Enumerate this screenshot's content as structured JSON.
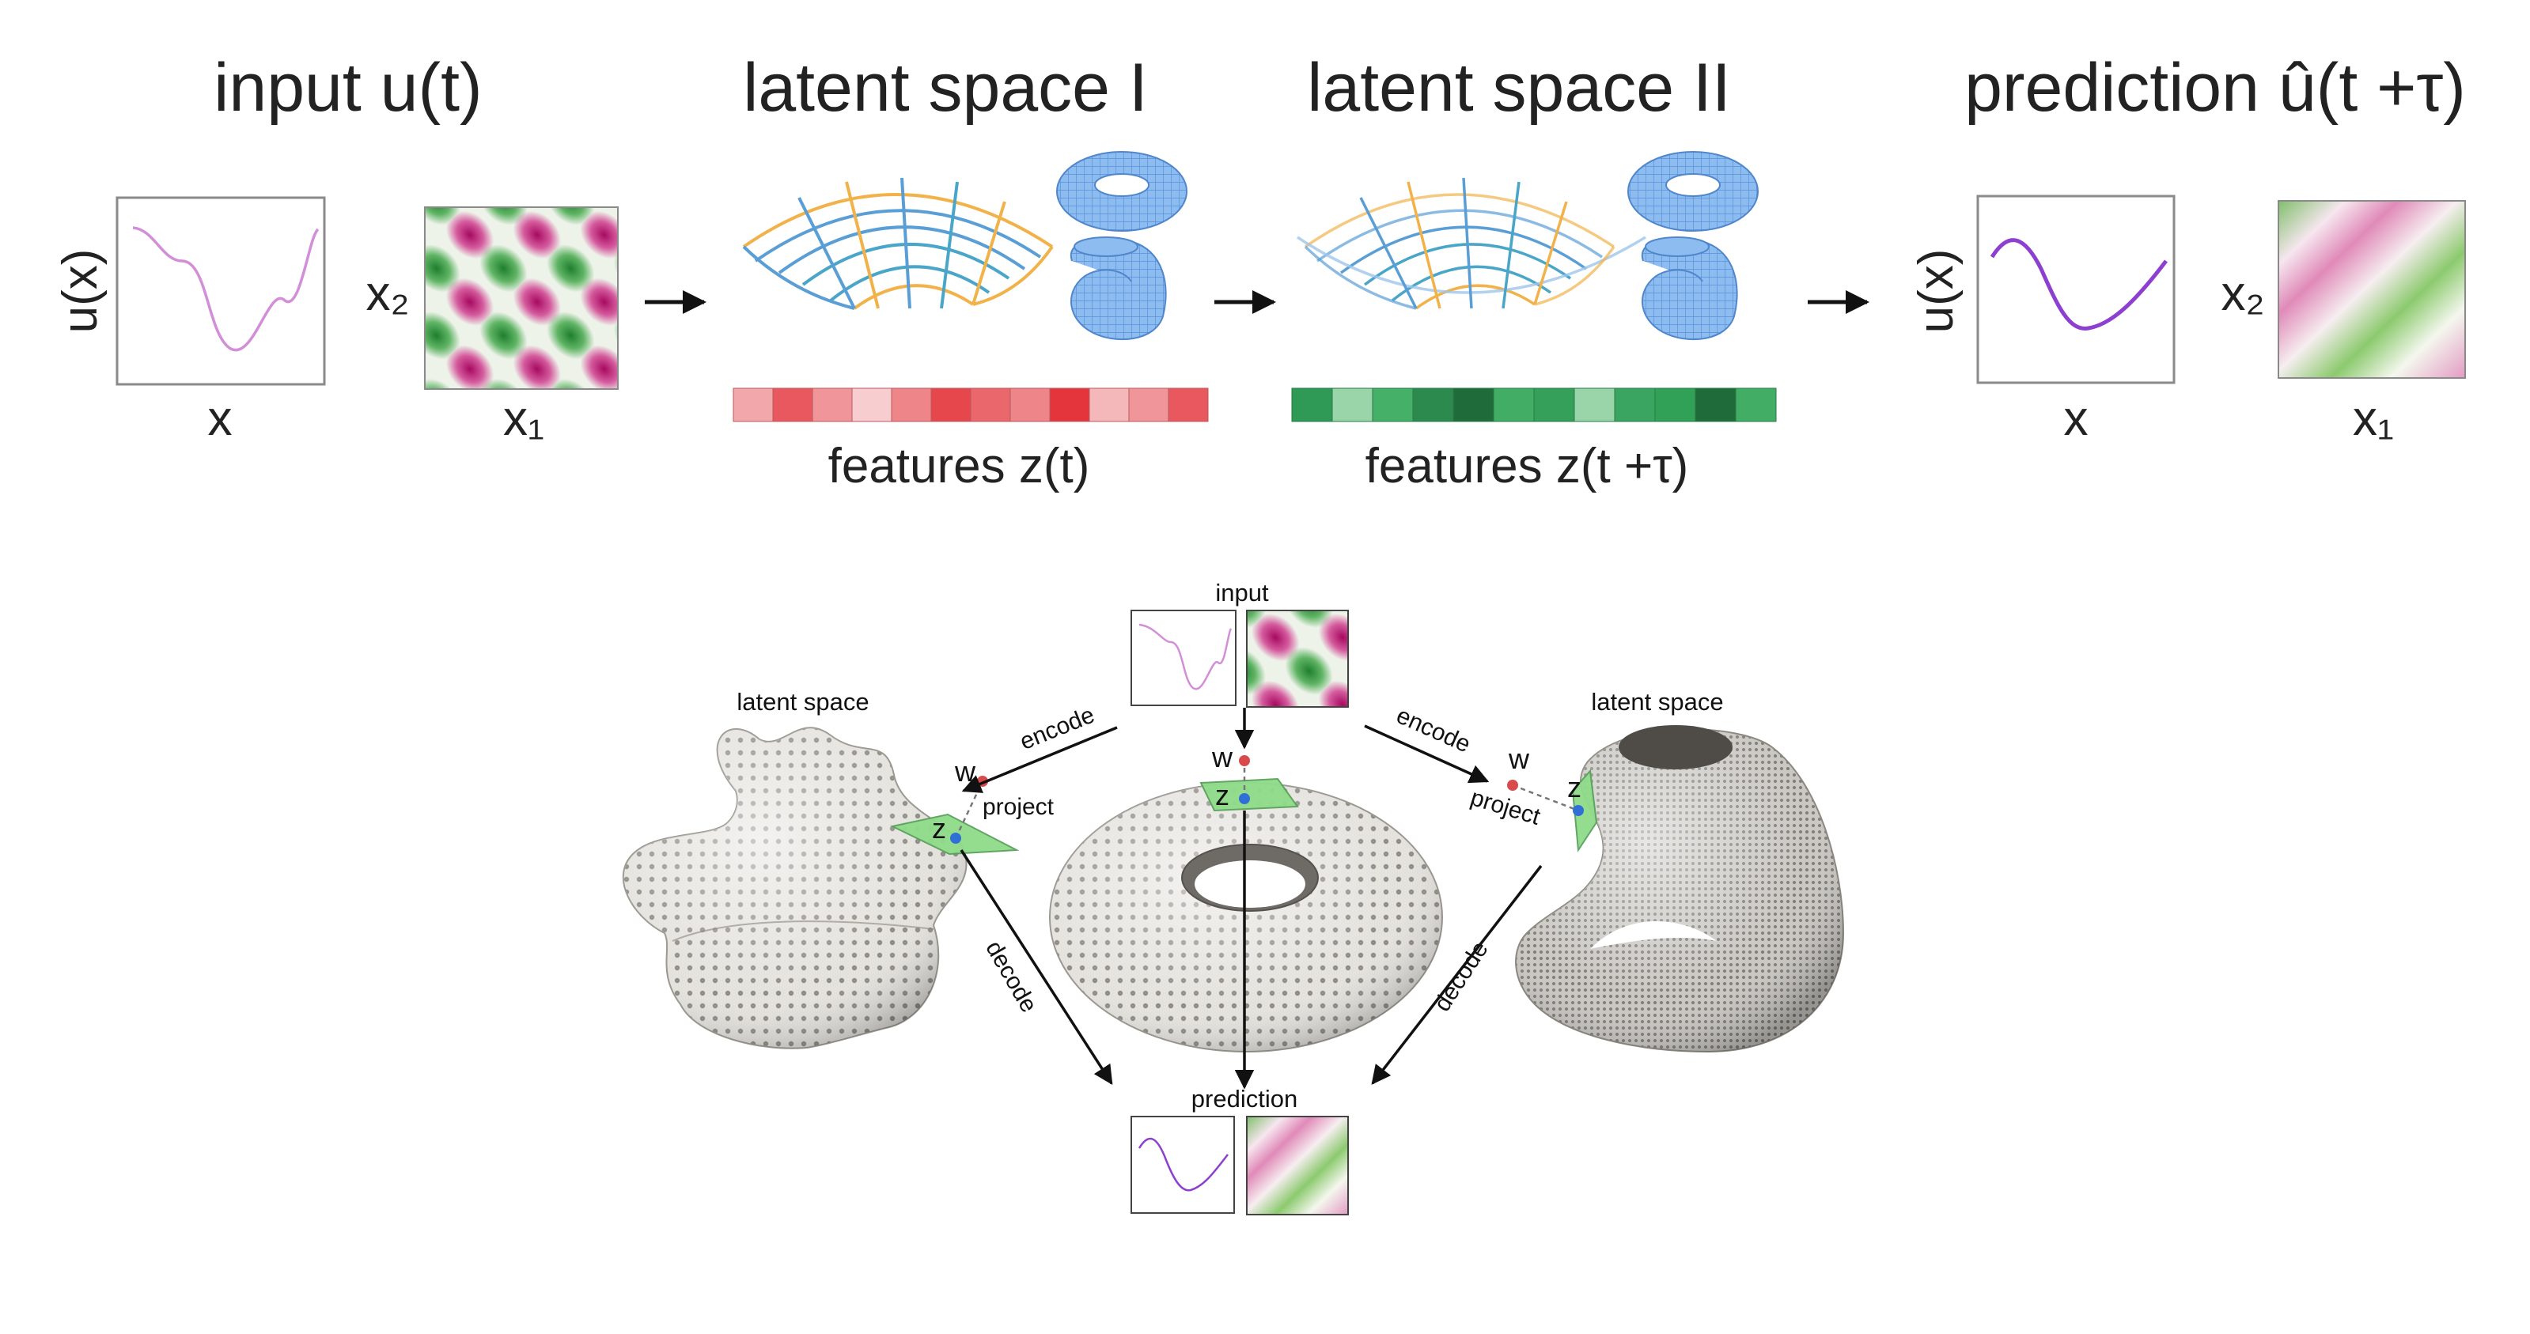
{
  "top_row": {
    "titles": {
      "input": "input u(t)",
      "latent1": "latent space I",
      "latent2": "latent space II",
      "prediction": "prediction û(t +τ)"
    },
    "features": {
      "z_t": "features z(t)",
      "z_t_tau": "features z(t +τ)"
    },
    "axis_labels": {
      "ux": "u(x)",
      "x": "x",
      "x2": "x₂",
      "x1": "x₁"
    },
    "feature_colors_red": [
      "#f2a8ab",
      "#e9585e",
      "#f0969a",
      "#f8cdd0",
      "#ee8589",
      "#e6474d",
      "#ea676b",
      "#ee8589",
      "#e3353b",
      "#f4b8bb",
      "#f0969a",
      "#e9585e"
    ],
    "feature_colors_green": [
      "#2f9a55",
      "#9ad4a9",
      "#44b068",
      "#2c8a4e",
      "#1f6b3a",
      "#41ad65",
      "#34a05a",
      "#9ad4a9",
      "#3aa560",
      "#32a158",
      "#1f6b3a",
      "#41ad65"
    ]
  },
  "bottom_diagram": {
    "input_label": "input",
    "prediction_label": "prediction",
    "latent_left": "latent space",
    "latent_right": "latent space",
    "edges": {
      "encode": "encode",
      "project": "project",
      "decode": "decode"
    },
    "points": {
      "w": "w",
      "z": "z"
    }
  },
  "colors": {
    "curve_input": "#cc77cc",
    "curve_pred": "#8d3fd0",
    "magenta": "#b0106a",
    "green": "#2c9a3a",
    "torus_blue": "#6aa8e8",
    "surface_gray": "#d4d2cd",
    "tangent_green": "#8fdc8a"
  }
}
